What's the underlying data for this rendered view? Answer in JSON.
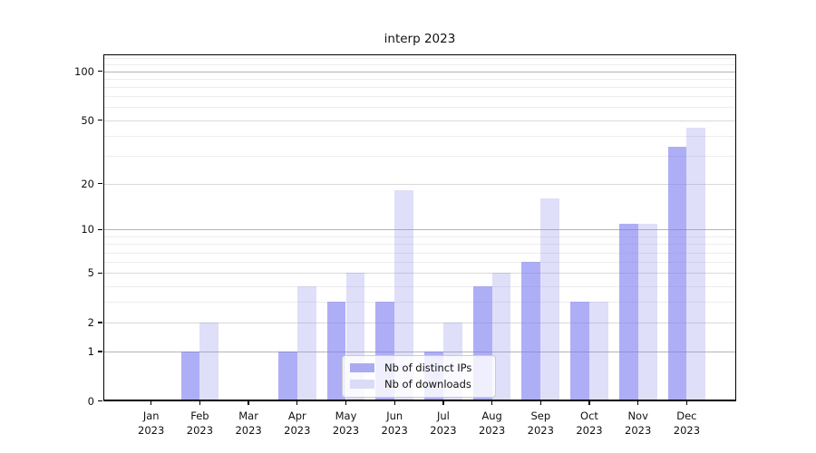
{
  "title": "interp 2023",
  "chart_data": {
    "type": "bar",
    "title": "interp 2023",
    "categories": [
      "Jan 2023",
      "Feb 2023",
      "Mar 2023",
      "Apr 2023",
      "May 2023",
      "Jun 2023",
      "Jul 2023",
      "Aug 2023",
      "Sep 2023",
      "Oct 2023",
      "Nov 2023",
      "Dec 2023"
    ],
    "series": [
      {
        "name": "Nb of distinct IPs",
        "color": "#aaaaf2",
        "fill": "rgba(124,124,240,0.62)",
        "values": [
          0,
          1,
          0,
          1,
          3,
          3,
          1,
          4,
          6,
          3,
          11,
          34
        ]
      },
      {
        "name": "Nb of downloads",
        "color": "#dbdbf7",
        "fill": "rgba(139,139,235,0.28)",
        "values": [
          0,
          2,
          0,
          4,
          5,
          18,
          2,
          5,
          16,
          3,
          11,
          45
        ]
      }
    ],
    "yticks": [
      0,
      1,
      2,
      5,
      10,
      20,
      50,
      100
    ],
    "minor_yticks": [
      3,
      4,
      6,
      7,
      8,
      9,
      30,
      40,
      60,
      70,
      80,
      90,
      110,
      120
    ],
    "strong_grid_yticks": [
      1,
      10,
      100
    ],
    "yscale": "log10(1+y)",
    "ylim": [
      0,
      128
    ],
    "xlabel": "",
    "ylabel": "",
    "grid": "horizontal, major and minor",
    "legend_position": "inside lower center"
  }
}
